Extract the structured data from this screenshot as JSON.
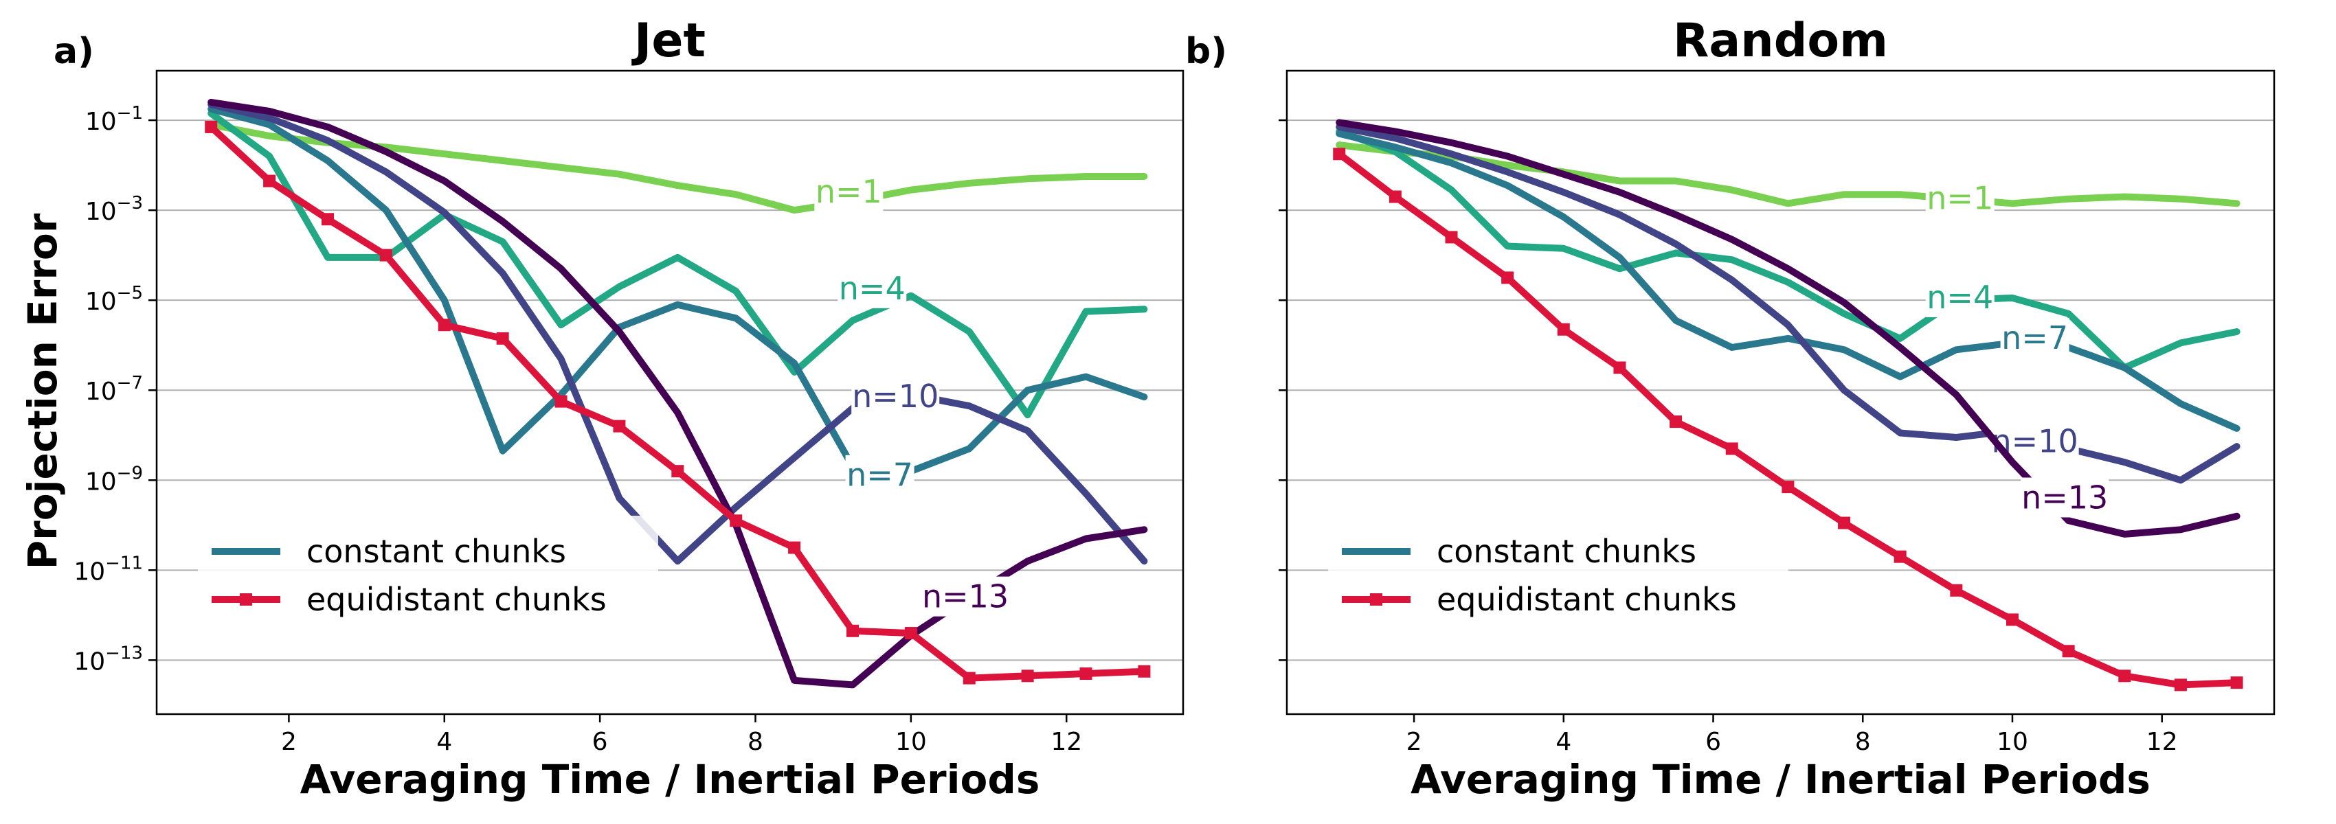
{
  "figure": {
    "ylabel": "Projection Error"
  },
  "chart_data": [
    {
      "type": "line",
      "panel_letter": "a)",
      "title": "Jet",
      "xlabel": "Averaging Time / Inertial Periods",
      "ylabel": "Projection Error",
      "xlim": [
        0.3,
        13.5
      ],
      "ylim_log10": [
        -14.2,
        0.1
      ],
      "yscale": "log",
      "grid": "y",
      "x_ticks": [
        2,
        4,
        6,
        8,
        10,
        12
      ],
      "y_ticks_exp": [
        -1,
        -3,
        -5,
        -7,
        -9,
        -11,
        -13
      ],
      "legend": {
        "location": "lower-left",
        "entries": [
          {
            "label": "constant chunks",
            "color": "#2a788e",
            "marker": "none"
          },
          {
            "label": "equidistant chunks",
            "color": "#dc143c",
            "marker": "square"
          }
        ]
      },
      "series": [
        {
          "name": "n=1",
          "label": "n=1",
          "color": "#7ad151",
          "label_at": [
            9.2,
            -2.6
          ],
          "x": [
            1,
            1.75,
            2.5,
            3.25,
            4,
            4.75,
            5.5,
            6.25,
            7,
            7.75,
            8.5,
            9.25,
            10,
            10.75,
            11.5,
            12.25,
            13
          ],
          "log_y": [
            -1.1,
            -1.35,
            -1.5,
            -1.6,
            -1.75,
            -1.9,
            -2.05,
            -2.2,
            -2.45,
            -2.65,
            -3.0,
            -2.8,
            -2.55,
            -2.4,
            -2.3,
            -2.25,
            -2.25
          ]
        },
        {
          "name": "n=4",
          "label": "n=4",
          "color": "#22a884",
          "label_at": [
            9.5,
            -4.75
          ],
          "x": [
            1,
            1.75,
            2.5,
            3.25,
            4,
            4.75,
            5.5,
            6.25,
            7,
            7.75,
            8.5,
            9.25,
            10,
            10.75,
            11.5,
            12.25,
            13
          ],
          "log_y": [
            -0.85,
            -1.8,
            -4.05,
            -4.05,
            -3.1,
            -3.7,
            -5.55,
            -4.7,
            -4.05,
            -4.8,
            -6.6,
            -5.45,
            -4.9,
            -5.7,
            -7.55,
            -5.25,
            -5.2
          ]
        },
        {
          "name": "n=7",
          "label": "n=7",
          "color": "#2a788e",
          "label_at": [
            9.6,
            -8.9
          ],
          "x": [
            1,
            1.75,
            2.5,
            3.25,
            4,
            4.75,
            5.5,
            6.25,
            7,
            7.75,
            8.5,
            9.25,
            10,
            10.75,
            11.5,
            12.25,
            13
          ],
          "log_y": [
            -0.75,
            -1.1,
            -1.9,
            -3.0,
            -5.0,
            -8.35,
            -7.1,
            -5.6,
            -5.1,
            -5.4,
            -6.4,
            -8.7,
            -8.8,
            -8.3,
            -7.0,
            -6.7,
            -7.15
          ]
        },
        {
          "name": "n=10",
          "label": "n=10",
          "color": "#414487",
          "label_at": [
            9.8,
            -7.15
          ],
          "x": [
            1,
            1.75,
            2.5,
            3.25,
            4,
            4.75,
            5.5,
            6.25,
            7,
            7.75,
            8.5,
            9.25,
            10,
            10.75,
            11.5,
            12.25,
            13
          ],
          "log_y": [
            -0.65,
            -0.95,
            -1.45,
            -2.15,
            -3.05,
            -4.4,
            -6.3,
            -9.4,
            -10.8,
            -9.6,
            -8.5,
            -7.4,
            -7.1,
            -7.35,
            -7.9,
            -9.3,
            -10.8
          ]
        },
        {
          "name": "n=13",
          "label": "n=13",
          "color": "#440154",
          "label_at": [
            10.7,
            -11.6
          ],
          "x": [
            1,
            1.75,
            2.5,
            3.25,
            4,
            4.75,
            5.5,
            6.25,
            7,
            7.75,
            8.5,
            9.25,
            10,
            10.75,
            11.5,
            12.25,
            13
          ],
          "log_y": [
            -0.6,
            -0.8,
            -1.15,
            -1.7,
            -2.35,
            -3.25,
            -4.3,
            -5.7,
            -7.5,
            -10.0,
            -13.45,
            -13.55,
            -12.45,
            -11.6,
            -10.8,
            -10.3,
            -10.1
          ]
        },
        {
          "name": "equidistant chunks",
          "color": "#dc143c",
          "marker": "square",
          "x": [
            1,
            1.75,
            2.5,
            3.25,
            4,
            4.75,
            5.5,
            6.25,
            7,
            7.75,
            8.5,
            9.25,
            10,
            10.75,
            11.5,
            12.25,
            13
          ],
          "log_y": [
            -1.15,
            -2.35,
            -3.2,
            -4.0,
            -5.55,
            -5.85,
            -7.25,
            -7.8,
            -8.8,
            -9.9,
            -10.5,
            -12.35,
            -12.4,
            -13.4,
            -13.35,
            -13.3,
            -13.25
          ]
        }
      ]
    },
    {
      "type": "line",
      "panel_letter": "b)",
      "title": "Random",
      "xlabel": "Averaging Time / Inertial Periods",
      "ylabel": "",
      "xlim": [
        0.3,
        13.5
      ],
      "ylim_log10": [
        -14.2,
        0.1
      ],
      "yscale": "log",
      "grid": "y",
      "x_ticks": [
        2,
        4,
        6,
        8,
        10,
        12
      ],
      "y_ticks_exp": [
        -1,
        -3,
        -5,
        -7,
        -9,
        -11,
        -13
      ],
      "legend": {
        "location": "lower-left",
        "entries": [
          {
            "label": "constant chunks",
            "color": "#2a788e",
            "marker": "none"
          },
          {
            "label": "equidistant chunks",
            "color": "#dc143c",
            "marker": "square"
          }
        ]
      },
      "series": [
        {
          "name": "n=1",
          "label": "n=1",
          "color": "#7ad151",
          "label_at": [
            9.3,
            -2.75
          ],
          "x": [
            1,
            1.75,
            2.5,
            3.25,
            4,
            4.75,
            5.5,
            6.25,
            7,
            7.75,
            8.5,
            9.25,
            10,
            10.75,
            11.5,
            12.25,
            13
          ],
          "log_y": [
            -1.55,
            -1.7,
            -1.8,
            -2.0,
            -2.15,
            -2.35,
            -2.35,
            -2.55,
            -2.85,
            -2.65,
            -2.65,
            -2.75,
            -2.85,
            -2.75,
            -2.7,
            -2.75,
            -2.85
          ]
        },
        {
          "name": "n=4",
          "label": "n=4",
          "color": "#22a884",
          "label_at": [
            9.3,
            -4.95
          ],
          "x": [
            1,
            1.75,
            2.5,
            3.25,
            4,
            4.75,
            5.5,
            6.25,
            7,
            7.75,
            8.5,
            9.25,
            10,
            10.75,
            11.5,
            12.25,
            13
          ],
          "log_y": [
            -1.25,
            -1.7,
            -2.55,
            -3.8,
            -3.85,
            -4.3,
            -3.95,
            -4.1,
            -4.6,
            -5.3,
            -5.85,
            -5.0,
            -4.95,
            -5.3,
            -6.5,
            -5.95,
            -5.7
          ]
        },
        {
          "name": "n=7",
          "label": "n=7",
          "color": "#2a788e",
          "label_at": [
            10.3,
            -5.85
          ],
          "x": [
            1,
            1.75,
            2.5,
            3.25,
            4,
            4.75,
            5.5,
            6.25,
            7,
            7.75,
            8.5,
            9.25,
            10,
            10.75,
            11.5,
            12.25,
            13
          ],
          "log_y": [
            -1.3,
            -1.6,
            -1.95,
            -2.45,
            -3.15,
            -4.05,
            -5.45,
            -6.05,
            -5.85,
            -6.1,
            -6.7,
            -6.1,
            -5.95,
            -6.05,
            -6.5,
            -7.3,
            -7.85
          ]
        },
        {
          "name": "n=10",
          "label": "n=10",
          "color": "#414487",
          "label_at": [
            10.3,
            -8.15
          ],
          "x": [
            1,
            1.75,
            2.5,
            3.25,
            4,
            4.75,
            5.5,
            6.25,
            7,
            7.75,
            8.5,
            9.25,
            10,
            10.75,
            11.5,
            12.25,
            13
          ],
          "log_y": [
            -1.15,
            -1.4,
            -1.75,
            -2.15,
            -2.6,
            -3.1,
            -3.75,
            -4.55,
            -5.55,
            -7.0,
            -7.95,
            -8.05,
            -7.9,
            -8.3,
            -8.6,
            -9.0,
            -8.25
          ]
        },
        {
          "name": "n=13",
          "label": "n=13",
          "color": "#440154",
          "label_at": [
            10.7,
            -9.4
          ],
          "x": [
            1,
            1.75,
            2.5,
            3.25,
            4,
            4.75,
            5.5,
            6.25,
            7,
            7.75,
            8.5,
            9.25,
            10,
            10.75,
            11.5,
            12.25,
            13
          ],
          "log_y": [
            -1.05,
            -1.25,
            -1.5,
            -1.8,
            -2.2,
            -2.6,
            -3.1,
            -3.65,
            -4.3,
            -5.05,
            -6.05,
            -7.1,
            -8.6,
            -9.9,
            -10.2,
            -10.1,
            -9.8
          ]
        },
        {
          "name": "equidistant chunks",
          "color": "#dc143c",
          "marker": "square",
          "x": [
            1,
            1.75,
            2.5,
            3.25,
            4,
            4.75,
            5.5,
            6.25,
            7,
            7.75,
            8.5,
            9.25,
            10,
            10.75,
            11.5,
            12.25,
            13
          ],
          "log_y": [
            -1.75,
            -2.7,
            -3.6,
            -4.5,
            -5.65,
            -6.5,
            -7.7,
            -8.3,
            -9.15,
            -9.95,
            -10.7,
            -11.45,
            -12.1,
            -12.8,
            -13.35,
            -13.55,
            -13.5
          ]
        }
      ]
    }
  ]
}
